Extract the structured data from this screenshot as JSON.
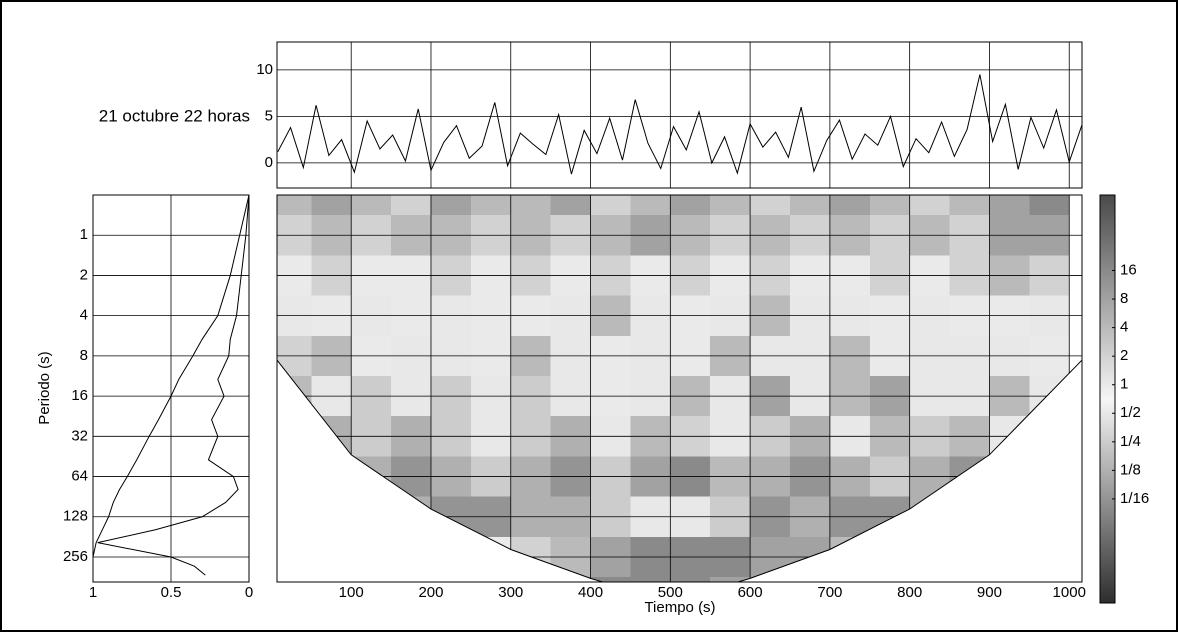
{
  "chart_data": [
    {
      "type": "line",
      "title": "21 octubre 22 horas",
      "x": [
        8,
        24,
        40,
        56,
        72,
        88,
        104,
        120,
        136,
        152,
        168,
        184,
        200,
        216,
        232,
        248,
        264,
        280,
        296,
        312,
        328,
        344,
        360,
        376,
        392,
        408,
        424,
        440,
        456,
        472,
        488,
        504,
        520,
        536,
        552,
        568,
        584,
        600,
        616,
        632,
        648,
        664,
        680,
        696,
        712,
        728,
        744,
        760,
        776,
        792,
        808,
        824,
        840,
        856,
        872,
        888,
        904,
        920,
        936,
        952,
        968,
        984,
        1000,
        1016
      ],
      "values": [
        1.2,
        3.8,
        -0.5,
        6.2,
        0.8,
        2.5,
        -1.0,
        4.5,
        1.5,
        3.0,
        0.2,
        5.8,
        -0.8,
        2.2,
        4.0,
        0.5,
        1.8,
        6.5,
        -0.3,
        3.2,
        2.0,
        0.9,
        5.2,
        -1.2,
        3.5,
        1.0,
        4.8,
        0.3,
        6.8,
        2.1,
        -0.6,
        3.9,
        1.4,
        5.5,
        0.0,
        2.8,
        -1.1,
        4.2,
        1.7,
        3.3,
        0.6,
        6.0,
        -0.9,
        2.4,
        4.6,
        0.4,
        3.1,
        1.9,
        5.0,
        -0.4,
        2.6,
        1.1,
        4.4,
        0.7,
        3.6,
        9.5,
        2.3,
        6.3,
        -0.7,
        4.9,
        1.6,
        5.7,
        0.1,
        4.1
      ],
      "color": "#000000",
      "xlim": [
        7,
        1016
      ],
      "xticks": [
        100,
        200,
        300,
        400,
        500,
        600,
        700,
        800,
        900,
        1000
      ],
      "ylim": [
        -2.7,
        13
      ],
      "yticks": [
        0,
        5,
        10
      ],
      "grid": true
    },
    {
      "type": "heatmap",
      "xlabel": "Tiempo (s)",
      "x": [
        25,
        75,
        125,
        175,
        225,
        275,
        325,
        375,
        425,
        475,
        525,
        575,
        625,
        675,
        725,
        775,
        825,
        875,
        925,
        975
      ],
      "y": [
        0.5,
        1,
        2,
        4,
        8,
        16,
        32,
        64,
        128,
        256,
        512
      ],
      "z": [
        [
          4,
          8,
          4,
          2,
          8,
          4,
          4,
          8,
          2,
          4,
          8,
          4,
          2,
          4,
          8,
          4,
          2,
          4,
          8,
          16
        ],
        [
          2,
          4,
          2,
          4,
          4,
          2,
          4,
          2,
          4,
          8,
          4,
          2,
          4,
          2,
          4,
          2,
          4,
          2,
          8,
          8
        ],
        [
          1,
          2,
          1,
          1,
          2,
          1,
          2,
          1,
          2,
          1,
          2,
          1,
          2,
          1,
          1,
          2,
          1,
          2,
          4,
          2
        ],
        [
          0.5,
          1,
          0.5,
          1,
          0.5,
          1,
          1,
          0.5,
          4,
          0.5,
          1,
          0.5,
          4,
          0.5,
          0.5,
          1,
          0.5,
          1,
          1,
          0.5
        ],
        [
          2,
          4,
          1,
          0.5,
          0.5,
          1,
          4,
          0.5,
          1,
          0.5,
          1,
          4,
          0.5,
          0.5,
          4,
          1,
          0.5,
          0.5,
          0.5,
          1
        ],
        [
          4,
          0.5,
          0.25,
          0.5,
          0.25,
          0.5,
          0.25,
          0.5,
          1,
          0.5,
          4,
          0.5,
          8,
          0.5,
          4,
          8,
          0.5,
          0.5,
          4,
          0.5
        ],
        [
          0.25,
          0.125,
          0.25,
          0.125,
          0.25,
          0.5,
          0.25,
          0.125,
          0.5,
          4,
          2,
          0.5,
          0.25,
          0.125,
          0.5,
          4,
          0.25,
          4,
          0.5,
          0.125
        ],
        [
          0.125,
          0.25,
          0.125,
          0.0625,
          0.125,
          0.25,
          0.125,
          0.0625,
          0.25,
          8,
          16,
          4,
          0.125,
          0.0625,
          0.125,
          0.25,
          0.125,
          0.0625,
          0.125,
          0.25
        ],
        [
          0.0625,
          0.0625,
          0.125,
          0.125,
          0.0625,
          0.0625,
          0.125,
          0.125,
          0.25,
          0.5,
          0.5,
          0.25,
          0.0625,
          0.125,
          0.0625,
          0.0625,
          0.125,
          0.125,
          0.0625,
          0.0625
        ],
        [
          0.03125,
          0.03125,
          0.0625,
          0.0625,
          0.25,
          1,
          2,
          4,
          8,
          16,
          16,
          16,
          8,
          8,
          4,
          2,
          0.25,
          0.0625,
          0.03125,
          0.03125
        ],
        [
          0.03125,
          0.03125,
          0.0625,
          0.125,
          0.5,
          2,
          4,
          8,
          16,
          16,
          16,
          8,
          8,
          4,
          2,
          1,
          0.5,
          0.125,
          0.03125,
          0.03125
        ]
      ],
      "coi": {
        "x": [
          7,
          100,
          200,
          300,
          400,
          500,
          600,
          700,
          800,
          900,
          1016
        ],
        "values": [
          8.6,
          44,
          112,
          225,
          370,
          560,
          370,
          225,
          112,
          44,
          8.6
        ]
      },
      "xlim": [
        7,
        1016
      ],
      "xticks": [
        100,
        200,
        300,
        400,
        500,
        600,
        700,
        800,
        900,
        1000
      ],
      "ylim": [
        0.5,
        394
      ],
      "yticks": [
        1,
        2,
        4,
        8,
        16,
        32,
        64,
        128,
        256
      ],
      "log_y": true,
      "grid": true,
      "clim": [
        0.005,
        100
      ],
      "log_c": true,
      "cticks": [
        16,
        8,
        4,
        2,
        1,
        {
          "value": 0.5,
          "label": "1/2"
        },
        {
          "value": 0.25,
          "label": "1/4"
        },
        {
          "value": 0.125,
          "label": "1/8"
        },
        {
          "value": 0.0625,
          "label": "1/16"
        }
      ],
      "colormap": [
        "#2e2e2e",
        "#f6f6f6",
        "#4a4a4a"
      ]
    },
    {
      "type": "line",
      "orientation": "horizontal",
      "ylabel": "Periodo (s)",
      "y": [
        0.5,
        1,
        2,
        4,
        6,
        8,
        12,
        16,
        24,
        32,
        48,
        64,
        80,
        100,
        128,
        160,
        200,
        256,
        300,
        350
      ],
      "series": [
        {
          "color": "#000000",
          "values": [
            0,
            0.02,
            0.05,
            0.08,
            0.12,
            0.13,
            0.2,
            0.16,
            0.24,
            0.2,
            0.26,
            0.1,
            0.07,
            0.15,
            0.3,
            0.6,
            0.97,
            0.5,
            0.35,
            0.28
          ]
        },
        {
          "color": "#000000",
          "values": [
            0,
            0.06,
            0.12,
            0.2,
            0.3,
            0.36,
            0.45,
            0.5,
            0.58,
            0.64,
            0.72,
            0.78,
            0.83,
            0.87,
            0.9,
            0.94,
            0.98,
            1.0,
            1.0,
            1.0
          ]
        }
      ],
      "xlim": [
        1,
        0
      ],
      "xticks": [
        1,
        0.5,
        0
      ],
      "ylim": [
        0.5,
        394
      ],
      "yticks": [
        1,
        2,
        4,
        8,
        16,
        32,
        64,
        128,
        256
      ],
      "log_y": true,
      "grid": true
    }
  ]
}
